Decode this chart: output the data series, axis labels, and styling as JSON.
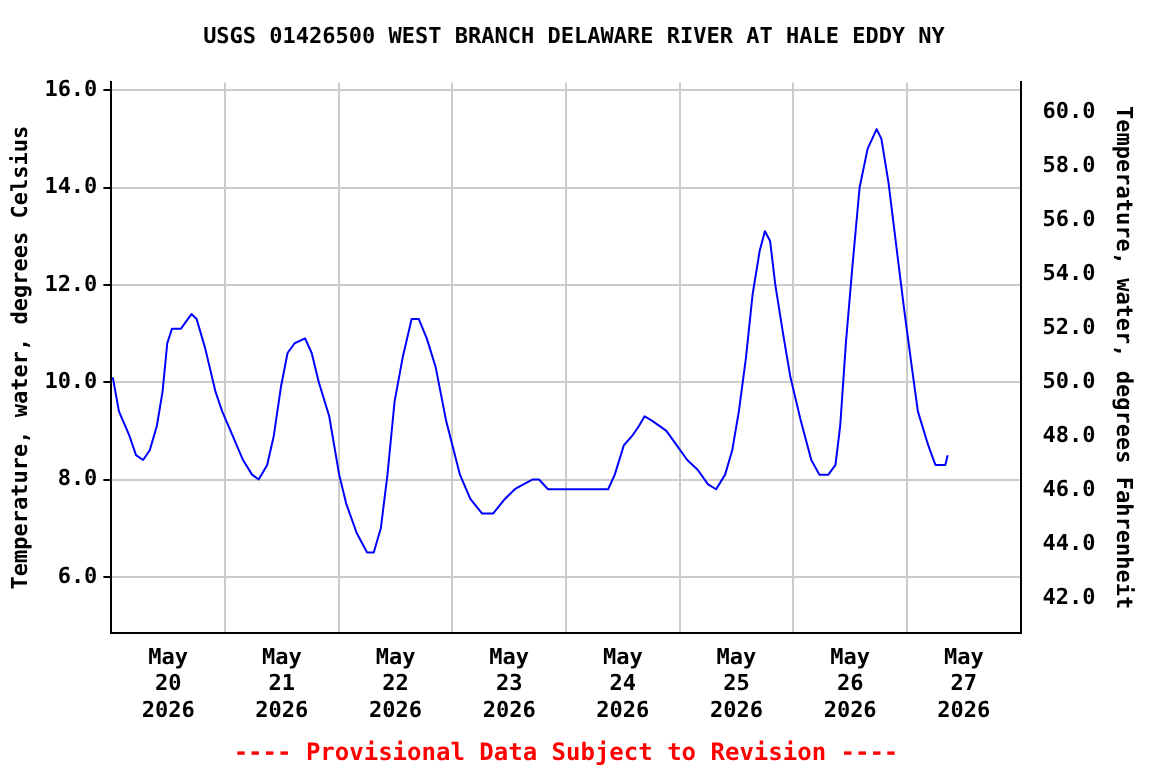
{
  "chart_data": {
    "type": "line",
    "title": "USGS 01426500 WEST BRANCH DELAWARE RIVER AT HALE EDDY NY",
    "ylabel": "Temperature, water, degrees Celsius",
    "y2label": "Temperature, water, degrees Fahrenheit",
    "annotations": [
      "---- Provisional Data Subject to Revision ----"
    ],
    "x": [
      "2026-05-20T00:18",
      "2026-05-20T01:36",
      "2026-05-20T03:48",
      "2026-05-20T05:12",
      "2026-05-20T06:42",
      "2026-05-20T08:06",
      "2026-05-20T09:36",
      "2026-05-20T10:48",
      "2026-05-20T11:48",
      "2026-05-20T12:48",
      "2026-05-20T14:42",
      "2026-05-20T16:54",
      "2026-05-20T18:00",
      "2026-05-20T19:48",
      "2026-05-20T22:00",
      "2026-05-20T23:24",
      "2026-05-21T01:36",
      "2026-05-21T03:48",
      "2026-05-21T05:42",
      "2026-05-21T07:06",
      "2026-05-21T08:54",
      "2026-05-21T10:18",
      "2026-05-21T11:48",
      "2026-05-21T13:12",
      "2026-05-21T14:42",
      "2026-05-21T16:54",
      "2026-05-21T18:18",
      "2026-05-21T19:48",
      "2026-05-21T22:00",
      "2026-05-22T00:06",
      "2026-05-22T01:36",
      "2026-05-22T03:48",
      "2026-05-22T06:00",
      "2026-05-22T07:24",
      "2026-05-22T08:54",
      "2026-05-22T10:18",
      "2026-05-22T11:48",
      "2026-05-22T13:30",
      "2026-05-22T15:24",
      "2026-05-22T16:54",
      "2026-05-22T18:36",
      "2026-05-22T20:30",
      "2026-05-22T22:42",
      "2026-05-23T01:36",
      "2026-05-23T03:48",
      "2026-05-23T06:18",
      "2026-05-23T08:36",
      "2026-05-23T11:06",
      "2026-05-23T13:12",
      "2026-05-23T15:00",
      "2026-05-23T16:54",
      "2026-05-23T18:18",
      "2026-05-23T20:12",
      "2026-05-24T00:54",
      "2026-05-24T03:48",
      "2026-05-24T04:30",
      "2026-05-24T08:54",
      "2026-05-24T10:18",
      "2026-05-24T12:12",
      "2026-05-24T14:00",
      "2026-05-24T15:24",
      "2026-05-24T16:36",
      "2026-05-24T18:18",
      "2026-05-24T21:12",
      "2026-05-24T23:24",
      "2026-05-25T01:36",
      "2026-05-25T03:48",
      "2026-05-25T06:00",
      "2026-05-25T07:42",
      "2026-05-25T09:36",
      "2026-05-25T11:06",
      "2026-05-25T12:30",
      "2026-05-25T14:00",
      "2026-05-25T15:24",
      "2026-05-25T16:54",
      "2026-05-25T18:00",
      "2026-05-25T19:06",
      "2026-05-25T20:12",
      "2026-05-25T22:00",
      "2026-05-25T23:24",
      "2026-05-26T01:36",
      "2026-05-26T03:48",
      "2026-05-26T05:30",
      "2026-05-26T07:24",
      "2026-05-26T08:54",
      "2026-05-26T09:54",
      "2026-05-26T11:06",
      "2026-05-26T12:30",
      "2026-05-26T14:00",
      "2026-05-26T15:42",
      "2026-05-26T17:36",
      "2026-05-26T18:36",
      "2026-05-26T20:06",
      "2026-05-26T22:00",
      "2026-05-26T23:24",
      "2026-05-27T00:54",
      "2026-05-27T02:18",
      "2026-05-27T04:30",
      "2026-05-27T06:00",
      "2026-05-27T08:06",
      "2026-05-27T08:36"
    ],
    "series": [
      {
        "color": "#0000ff",
        "values": [
          10.1,
          9.4,
          8.9,
          8.5,
          8.4,
          8.6,
          9.1,
          9.8,
          10.8,
          11.1,
          11.1,
          11.4,
          11.3,
          10.7,
          9.8,
          9.4,
          8.9,
          8.4,
          8.1,
          8.0,
          8.3,
          8.9,
          9.9,
          10.6,
          10.8,
          10.9,
          10.6,
          10.0,
          9.3,
          8.1,
          7.5,
          6.9,
          6.5,
          6.5,
          7.0,
          8.1,
          9.6,
          10.5,
          11.3,
          11.3,
          10.9,
          10.3,
          9.2,
          8.1,
          7.6,
          7.3,
          7.3,
          7.6,
          7.8,
          7.9,
          8.0,
          8.0,
          7.8,
          7.8,
          7.8,
          7.8,
          7.8,
          8.1,
          8.7,
          8.9,
          9.1,
          9.3,
          9.2,
          9.0,
          8.7,
          8.4,
          8.2,
          7.9,
          7.8,
          8.1,
          8.6,
          9.4,
          10.5,
          11.8,
          12.7,
          13.1,
          12.9,
          12.0,
          10.9,
          10.1,
          9.2,
          8.4,
          8.1,
          8.1,
          8.3,
          9.1,
          10.8,
          12.4,
          14.0,
          14.8,
          15.2,
          15.0,
          14.1,
          12.6,
          11.5,
          10.4,
          9.4,
          8.7,
          8.3,
          8.3,
          8.5
        ]
      }
    ],
    "xlim": [
      "2026-05-20T00:00",
      "2026-05-28T00:00"
    ],
    "xticks": [
      {
        "value": "2026-05-20T00:00",
        "label": null
      },
      {
        "value": "2026-05-20T12:00",
        "label": "May\n20\n2026"
      },
      {
        "value": "2026-05-21T00:00",
        "label": null
      },
      {
        "value": "2026-05-21T12:00",
        "label": "May\n21\n2026"
      },
      {
        "value": "2026-05-22T00:00",
        "label": null
      },
      {
        "value": "2026-05-22T12:00",
        "label": "May\n22\n2026"
      },
      {
        "value": "2026-05-23T00:00",
        "label": null
      },
      {
        "value": "2026-05-23T12:00",
        "label": "May\n23\n2026"
      },
      {
        "value": "2026-05-24T00:00",
        "label": null
      },
      {
        "value": "2026-05-24T12:00",
        "label": "May\n24\n2026"
      },
      {
        "value": "2026-05-25T00:00",
        "label": null
      },
      {
        "value": "2026-05-25T12:00",
        "label": "May\n25\n2026"
      },
      {
        "value": "2026-05-26T00:00",
        "label": null
      },
      {
        "value": "2026-05-26T12:00",
        "label": "May\n26\n2026"
      },
      {
        "value": "2026-05-27T00:00",
        "label": null
      },
      {
        "value": "2026-05-27T12:00",
        "label": "May\n27\n2026"
      },
      {
        "value": "2026-05-28T00:00",
        "label": null
      }
    ],
    "ylim": [
      4.85,
      16.16
    ],
    "yticks": [
      {
        "value": 6,
        "label": "6.0"
      },
      {
        "value": 8,
        "label": "8.0"
      },
      {
        "value": 10,
        "label": "10.0"
      },
      {
        "value": 12,
        "label": "12.0"
      },
      {
        "value": 14,
        "label": "14.0"
      },
      {
        "value": 16,
        "label": "16.0"
      }
    ],
    "y2lim": [
      40.73,
      61.09
    ],
    "y2ticks": [
      {
        "value": 42,
        "label": "42.0"
      },
      {
        "value": 44,
        "label": "44.0"
      },
      {
        "value": 46,
        "label": "46.0"
      },
      {
        "value": 48,
        "label": "48.0"
      },
      {
        "value": 50,
        "label": "50.0"
      },
      {
        "value": 52,
        "label": "52.0"
      },
      {
        "value": 54,
        "label": "54.0"
      },
      {
        "value": 56,
        "label": "56.0"
      },
      {
        "value": 58,
        "label": "58.0"
      },
      {
        "value": 60,
        "label": "60.0"
      }
    ],
    "grid": true,
    "legend": false,
    "marker": "none",
    "line_style": "solid"
  }
}
